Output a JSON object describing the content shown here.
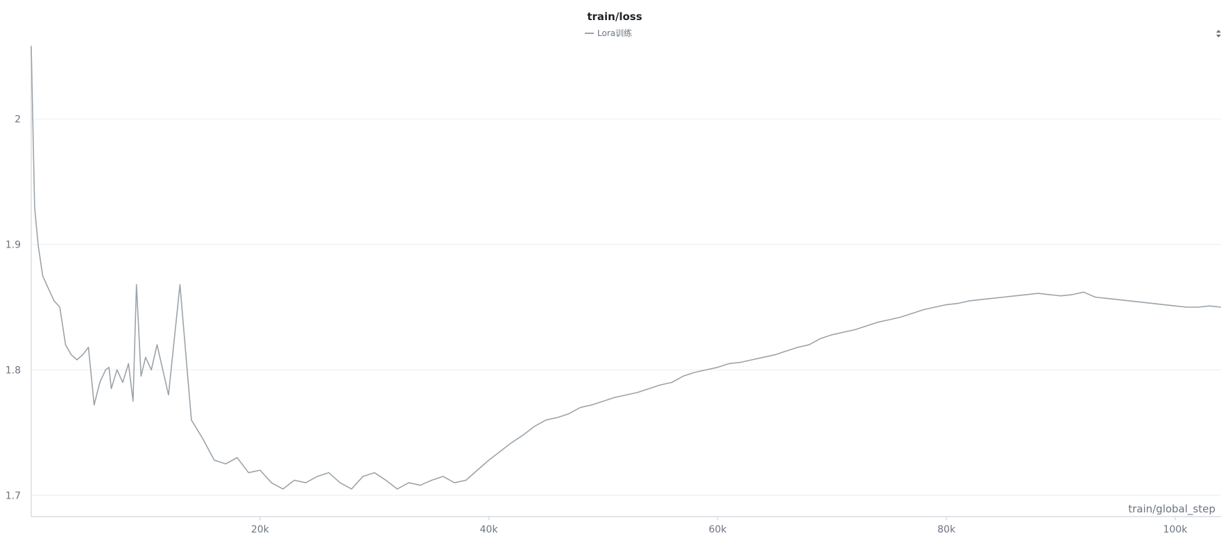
{
  "chart_data": {
    "type": "line",
    "title": "train/loss",
    "xlabel": "train/global_step",
    "ylabel": "",
    "xlim": [
      0,
      104000
    ],
    "ylim": [
      1.683,
      2.059
    ],
    "x_ticks": [
      20000,
      40000,
      60000,
      80000,
      100000
    ],
    "x_tick_labels": [
      "20k",
      "40k",
      "60k",
      "80k",
      "100k"
    ],
    "y_ticks": [
      1.7,
      1.8,
      1.9,
      2
    ],
    "y_tick_labels": [
      "1.7",
      "1.8",
      "1.9",
      "2"
    ],
    "grid": true,
    "legend_position": "top-center",
    "series": [
      {
        "name": "Lora训练",
        "color": "#9aa3a9",
        "x": [
          0,
          300,
          600,
          1000,
          1500,
          2000,
          2500,
          3000,
          3500,
          4000,
          4500,
          5000,
          5500,
          6000,
          6500,
          6800,
          7000,
          7500,
          8000,
          8500,
          8900,
          9200,
          9600,
          10000,
          10500,
          11000,
          12000,
          13000,
          14000,
          15000,
          16000,
          17000,
          18000,
          19000,
          20000,
          21000,
          22000,
          23000,
          24000,
          25000,
          26000,
          27000,
          28000,
          29000,
          30000,
          31000,
          32000,
          33000,
          34000,
          35000,
          36000,
          37000,
          38000,
          39000,
          40000,
          41000,
          42000,
          43000,
          44000,
          45000,
          46000,
          47000,
          48000,
          49000,
          50000,
          51000,
          52000,
          53000,
          54000,
          55000,
          56000,
          57000,
          58000,
          59000,
          60000,
          61000,
          62000,
          63000,
          64000,
          65000,
          66000,
          67000,
          68000,
          69000,
          70000,
          71000,
          72000,
          73000,
          74000,
          75000,
          76000,
          77000,
          78000,
          79000,
          80000,
          81000,
          82000,
          83000,
          84000,
          85000,
          86000,
          87000,
          88000,
          89000,
          90000,
          91000,
          92000,
          93000,
          94000,
          95000,
          96000,
          97000,
          98000,
          99000,
          100000,
          101000,
          102000,
          103000,
          104000
        ],
        "y": [
          2.058,
          1.93,
          1.9,
          1.875,
          1.865,
          1.855,
          1.85,
          1.82,
          1.812,
          1.808,
          1.812,
          1.818,
          1.772,
          1.79,
          1.8,
          1.802,
          1.785,
          1.8,
          1.79,
          1.805,
          1.775,
          1.868,
          1.795,
          1.81,
          1.8,
          1.82,
          1.78,
          1.868,
          1.76,
          1.745,
          1.728,
          1.725,
          1.73,
          1.718,
          1.72,
          1.71,
          1.705,
          1.712,
          1.71,
          1.715,
          1.718,
          1.71,
          1.705,
          1.715,
          1.718,
          1.712,
          1.705,
          1.71,
          1.708,
          1.712,
          1.715,
          1.71,
          1.712,
          1.72,
          1.728,
          1.735,
          1.742,
          1.748,
          1.755,
          1.76,
          1.762,
          1.765,
          1.77,
          1.772,
          1.775,
          1.778,
          1.78,
          1.782,
          1.785,
          1.788,
          1.79,
          1.795,
          1.798,
          1.8,
          1.802,
          1.805,
          1.806,
          1.808,
          1.81,
          1.812,
          1.815,
          1.818,
          1.82,
          1.825,
          1.828,
          1.83,
          1.832,
          1.835,
          1.838,
          1.84,
          1.842,
          1.845,
          1.848,
          1.85,
          1.852,
          1.853,
          1.855,
          1.856,
          1.857,
          1.858,
          1.859,
          1.86,
          1.861,
          1.86,
          1.859,
          1.86,
          1.862,
          1.858,
          1.857,
          1.856,
          1.855,
          1.854,
          1.853,
          1.852,
          1.851,
          1.85,
          1.85,
          1.851,
          1.85
        ]
      }
    ]
  }
}
